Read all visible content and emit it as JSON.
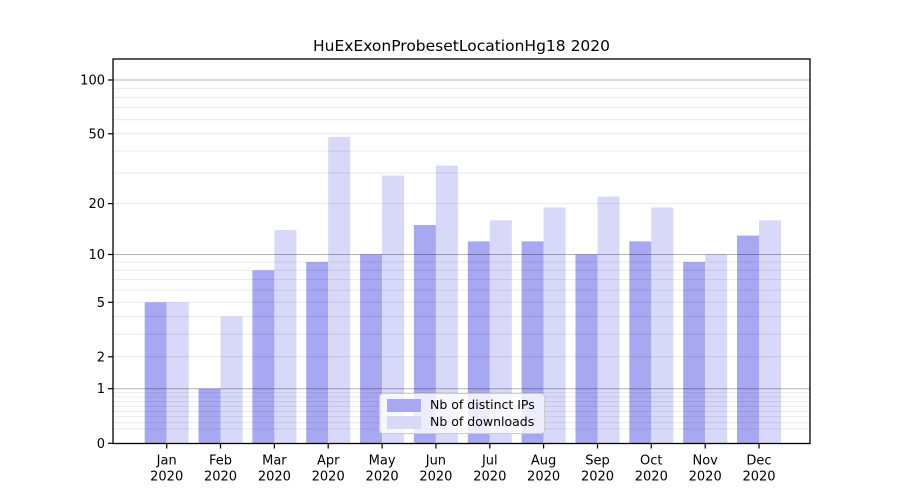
{
  "chart_data": {
    "type": "bar",
    "title": "HuExExonProbesetLocationHg18 2020",
    "categories": [
      "Jan",
      "Feb",
      "Mar",
      "Apr",
      "May",
      "Jun",
      "Jul",
      "Aug",
      "Sep",
      "Oct",
      "Nov",
      "Dec"
    ],
    "x_tick_second_line": "2020",
    "series": [
      {
        "name": "Nb of distinct IPs",
        "key": "distinct-ips",
        "color": "#a7a7f2",
        "values": [
          5,
          1,
          8,
          9,
          10,
          15,
          12,
          12,
          10,
          12,
          9,
          13
        ]
      },
      {
        "name": "Nb of downloads",
        "key": "downloads",
        "color": "#d8d8f9",
        "values": [
          5,
          4,
          14,
          48,
          29,
          33,
          16,
          19,
          22,
          19,
          10,
          16
        ]
      }
    ],
    "xlabel": "",
    "ylabel": "",
    "y_axis": {
      "scale": "log1p",
      "tick_labels": [
        0,
        1,
        2,
        5,
        10,
        20,
        50,
        100
      ],
      "major_gridlines": [
        1,
        10,
        100
      ],
      "minor_gridlines": [
        0.2,
        0.3,
        0.4,
        0.5,
        0.6,
        0.7,
        0.8,
        0.9,
        2,
        3,
        4,
        5,
        6,
        7,
        8,
        9,
        20,
        30,
        40,
        50,
        60,
        70,
        80,
        90
      ],
      "ylim": [
        0,
        131
      ]
    },
    "legend": {
      "position": "lower center-right"
    },
    "grid": true,
    "colors": {
      "axis": "#000000",
      "major_grid": "rgba(0,0,0,0.30)",
      "minor_grid": "rgba(0,0,0,0.085)",
      "text": "#000000",
      "background": "#ffffff"
    }
  }
}
